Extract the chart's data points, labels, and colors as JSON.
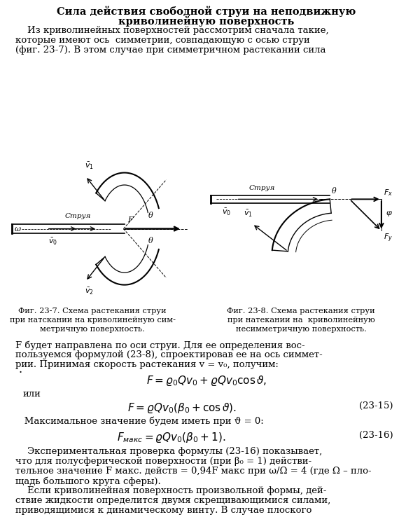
{
  "title_line1": "Сила действия свободной струи на неподвижную",
  "title_line2": "криволинейную поверхность",
  "para1_lines": [
    "    Из криволинейных поверхностей рассмотрим сначала такие,",
    "которые имеют ось  симметрии, совпадающую с осью струи",
    "(фиг. 23-7). В этом случае при симметричном растекании сила"
  ],
  "fig1_caption_lines": [
    "Фиг. 23-7. Схема растекания струи",
    "при натскании на криволинейную сим-",
    "метричную поверхность."
  ],
  "fig2_caption_lines": [
    "Фиг. 23-8. Схема растекания струи",
    "при натекании на  криволинейную",
    "несимметричную поверхность."
  ],
  "para2_lines": [
    "F будет направлена по оси струи. Для ее определения вос-",
    "пользуемся формулой (23-8), спроектировав ее на ось симмет-",
    "рии. Принимая скорость растекания v = v₀, получим:"
  ],
  "ili": "или",
  "para3": "   Максимальное значение будем иметь при ϑ = 0:",
  "para4_lines": [
    "    Экспериментальная проверка формулы (23-16) показывает,",
    "что для полусферической поверхности (при β₀ = 1) действи-",
    "тельное значение F макс. действ = 0,94F макс при ω/Ω = 4 (где Ω – пло-",
    "щадь большого круга сферы)."
  ],
  "para5_lines": [
    "    Если криволинейная поверхность произвольной формы, дей-",
    "ствие жидкости определится двумя скрещивающимися силами,",
    "приводящимися к динамическому винту. В случае плоского"
  ],
  "eq_num2": "(23-15)",
  "eq_num3": "(23-16)",
  "bg_color": "#ffffff",
  "text_color": "#000000",
  "title_fontsize": 10.5,
  "body_fontsize": 9.5,
  "caption_fontsize": 8.2,
  "formula_fontsize": 11
}
